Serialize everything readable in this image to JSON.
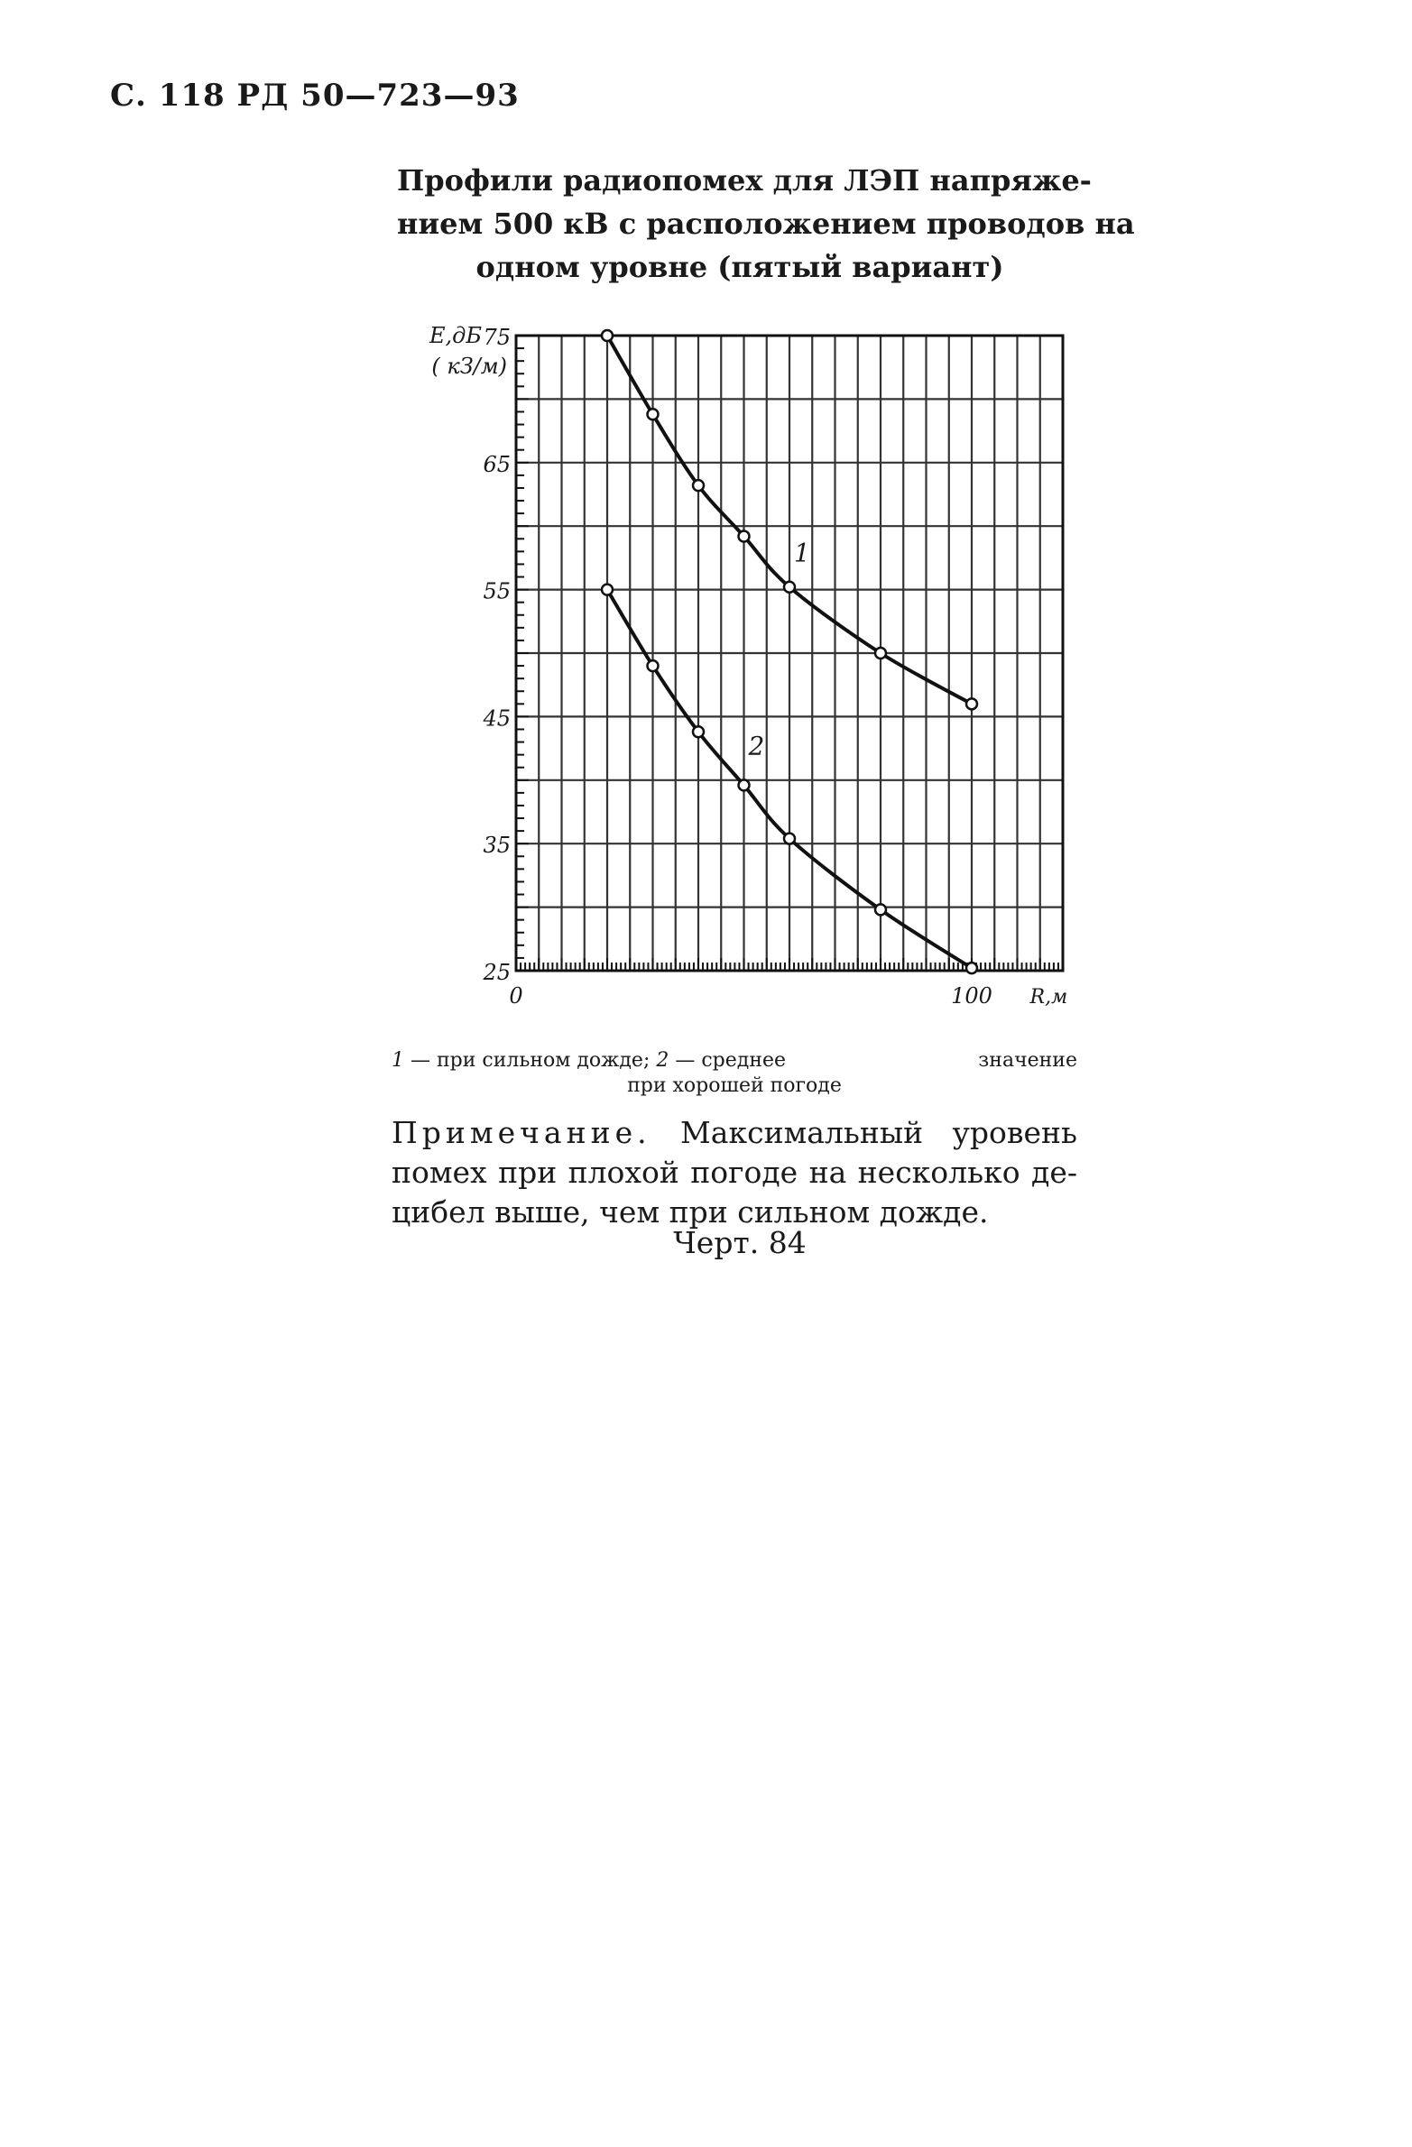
{
  "header": "С. 118 РД 50—723—93",
  "title_lines": [
    "Профили радиопомех для ЛЭП напряже-",
    "нием 500 кВ с расположением проводов на",
    "одном уровне (пятый вариант)"
  ],
  "chart_data": {
    "type": "line",
    "ylabel_line1": "E,дБ",
    "ylabel_line2": "( кЗ/м)",
    "xlabel": "R,м",
    "x_ticks": [
      "0",
      "100"
    ],
    "y_ticks": [
      "75",
      "65",
      "55",
      "45",
      "35",
      "25"
    ],
    "ylim": [
      25,
      75
    ],
    "xlim": [
      0,
      120
    ],
    "grid": true,
    "series": [
      {
        "name": "1",
        "x": [
          20,
          30,
          40,
          50,
          60,
          80,
          100
        ],
        "y": [
          75,
          68.8,
          63.2,
          59.2,
          55.2,
          50,
          46
        ]
      },
      {
        "name": "2",
        "x": [
          20,
          30,
          40,
          50,
          60,
          80,
          100
        ],
        "y": [
          55,
          49,
          43.8,
          39.6,
          35.4,
          29.8,
          25.2
        ]
      }
    ]
  },
  "caption": {
    "n1": "1",
    "t1": "— при сильном дожде;",
    "n2": "2",
    "t2a": "— среднее",
    "t2b": "значение",
    "t2c": "при хорошей погоде"
  },
  "note": {
    "label": "Примечание.",
    "line1_rest": "Максимальный уровень",
    "line2": "помех при плохой погоде на несколько де-",
    "line3": "цибел выше, чем при сильном дожде."
  },
  "figure_label": "Черт. 84"
}
